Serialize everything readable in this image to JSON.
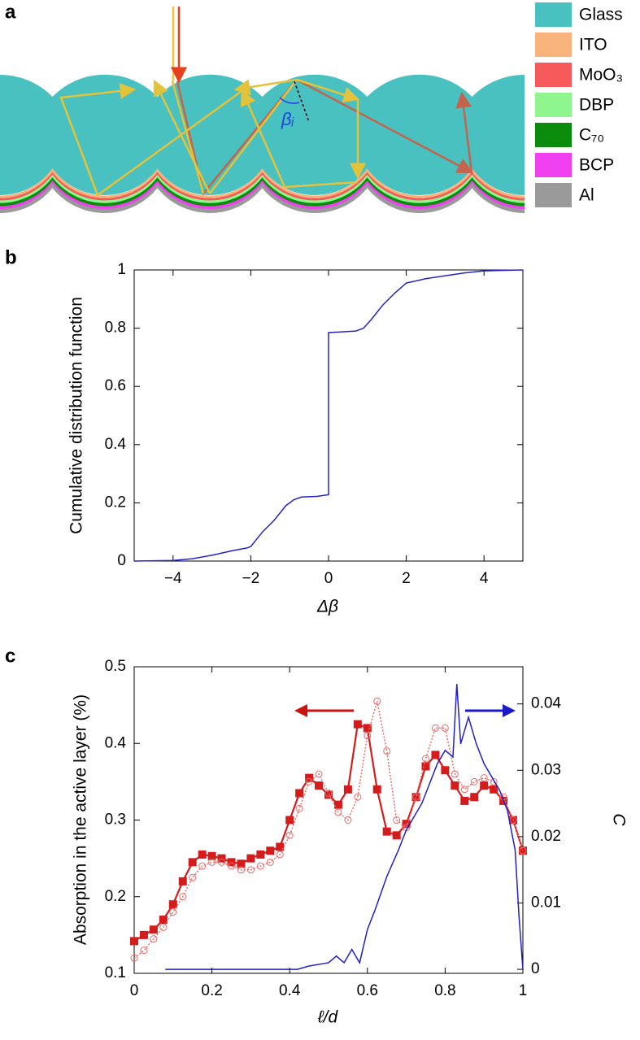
{
  "panel_labels": [
    "a",
    "b",
    "c"
  ],
  "diagram": {
    "angle_label": "βᵢ",
    "legend": [
      {
        "label": "Glass",
        "color": "#48c1c0"
      },
      {
        "label": "ITO",
        "color": "#f8b47c"
      },
      {
        "label": "MoO₃",
        "color": "#f65a5a"
      },
      {
        "label": "DBP",
        "color": "#8ff58f"
      },
      {
        "label": "C₇₀",
        "color": "#0c8c0c"
      },
      {
        "label": "BCP",
        "color": "#f040f0"
      },
      {
        "label": "Al",
        "color": "#9a9a9a"
      }
    ]
  },
  "chart_data": [
    {
      "type": "line",
      "xlabel": "Δβ",
      "ylabel": "Cumulative distribution function",
      "x": [
        -5,
        -4,
        -3.5,
        -3,
        -2.5,
        -2.1,
        -2,
        -1.7,
        -1.4,
        -1.1,
        -0.9,
        -0.7,
        -0.3,
        0,
        0,
        0.3,
        0.7,
        0.9,
        1.1,
        1.4,
        1.7,
        2,
        2.5,
        3,
        3.5,
        4,
        5
      ],
      "series": [
        {
          "color": "#2424c8",
          "values": [
            0,
            0.002,
            0.008,
            0.02,
            0.035,
            0.045,
            0.05,
            0.1,
            0.14,
            0.19,
            0.21,
            0.22,
            0.222,
            0.228,
            0.785,
            0.787,
            0.79,
            0.8,
            0.83,
            0.88,
            0.92,
            0.955,
            0.97,
            0.98,
            0.99,
            0.997,
            1
          ]
        }
      ],
      "xlim": [
        -5,
        5
      ],
      "ylim": [
        0,
        1
      ],
      "xticks": [
        {
          "value": -4,
          "label": "−4"
        },
        {
          "value": -2,
          "label": "−2"
        },
        0,
        2,
        4
      ],
      "yticks": [
        0,
        0.2,
        0.4,
        0.6,
        0.8,
        1
      ]
    },
    {
      "type": "line",
      "xlabel": "ℓ/d",
      "ylabel": "Absorption in the active layer (%)",
      "y2label": "C",
      "series": [
        {
          "color": "#d41c1c",
          "marker": "square",
          "linestyle": "solid",
          "x": [
            0,
            0.025,
            0.05,
            0.075,
            0.1,
            0.125,
            0.15,
            0.175,
            0.2,
            0.225,
            0.25,
            0.275,
            0.3,
            0.325,
            0.35,
            0.375,
            0.4,
            0.425,
            0.45,
            0.475,
            0.5,
            0.525,
            0.55,
            0.575,
            0.6,
            0.625,
            0.65,
            0.675,
            0.7,
            0.725,
            0.75,
            0.775,
            0.8,
            0.825,
            0.85,
            0.875,
            0.9,
            0.925,
            0.95,
            0.975,
            1
          ],
          "values": [
            0.142,
            0.15,
            0.157,
            0.17,
            0.19,
            0.22,
            0.245,
            0.255,
            0.253,
            0.25,
            0.245,
            0.243,
            0.25,
            0.255,
            0.26,
            0.265,
            0.3,
            0.335,
            0.355,
            0.345,
            0.333,
            0.32,
            0.34,
            0.425,
            0.42,
            0.34,
            0.285,
            0.28,
            0.295,
            0.33,
            0.37,
            0.385,
            0.365,
            0.345,
            0.325,
            0.33,
            0.345,
            0.34,
            0.325,
            0.3,
            0.26
          ]
        },
        {
          "color": "#ee6a6a",
          "marker": "circle-open",
          "linestyle": "dotted",
          "x": [
            0,
            0.025,
            0.05,
            0.075,
            0.1,
            0.125,
            0.15,
            0.175,
            0.2,
            0.225,
            0.25,
            0.275,
            0.3,
            0.325,
            0.35,
            0.375,
            0.4,
            0.425,
            0.45,
            0.475,
            0.5,
            0.525,
            0.55,
            0.575,
            0.6,
            0.625,
            0.65,
            0.675,
            0.7,
            0.725,
            0.75,
            0.775,
            0.8,
            0.825,
            0.85,
            0.875,
            0.9,
            0.925,
            0.95,
            0.975,
            1
          ],
          "values": [
            0.12,
            0.13,
            0.145,
            0.16,
            0.18,
            0.2,
            0.225,
            0.24,
            0.245,
            0.245,
            0.24,
            0.235,
            0.235,
            0.24,
            0.245,
            0.255,
            0.28,
            0.315,
            0.35,
            0.36,
            0.335,
            0.31,
            0.3,
            0.33,
            0.41,
            0.455,
            0.39,
            0.3,
            0.29,
            0.33,
            0.38,
            0.42,
            0.42,
            0.36,
            0.34,
            0.35,
            0.355,
            0.35,
            0.33,
            0.3,
            0.26
          ]
        },
        {
          "color": "#2020c8",
          "axis": "y2",
          "linestyle": "solid",
          "x": [
            0.08,
            0.42,
            0.45,
            0.5,
            0.52,
            0.54,
            0.56,
            0.58,
            0.6,
            0.62,
            0.65,
            0.68,
            0.7,
            0.72,
            0.74,
            0.76,
            0.78,
            0.8,
            0.82,
            0.83,
            0.84,
            0.86,
            0.88,
            0.9,
            0.92,
            0.94,
            0.96,
            0.98,
            0.99,
            1
          ],
          "values": [
            0,
            0,
            0.0005,
            0.001,
            0.002,
            0.001,
            0.003,
            0.001,
            0.006,
            0.009,
            0.014,
            0.018,
            0.021,
            0.023,
            0.025,
            0.028,
            0.031,
            0.033,
            0.032,
            0.043,
            0.034,
            0.038,
            0.034,
            0.031,
            0.029,
            0.027,
            0.024,
            0.018,
            0.008,
            0
          ]
        }
      ],
      "xlim": [
        0,
        1
      ],
      "ylim": [
        0.1,
        0.5
      ],
      "y2lim": [
        -0.0006,
        0.0456
      ],
      "xticks": [
        0,
        0.2,
        0.4,
        0.6,
        0.8,
        1
      ],
      "yticks": [
        0.1,
        0.2,
        0.3,
        0.4,
        0.5
      ],
      "y2ticks": [
        0,
        0.01,
        0.02,
        0.03,
        0.04
      ]
    }
  ]
}
